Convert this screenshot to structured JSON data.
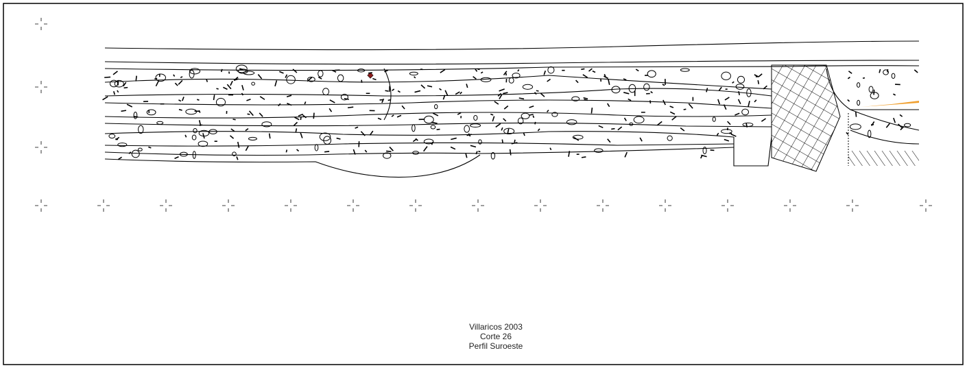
{
  "caption": {
    "lines": [
      "Villaricos 2003",
      "Corte 26",
      "Perfil Suroeste"
    ]
  }
}
